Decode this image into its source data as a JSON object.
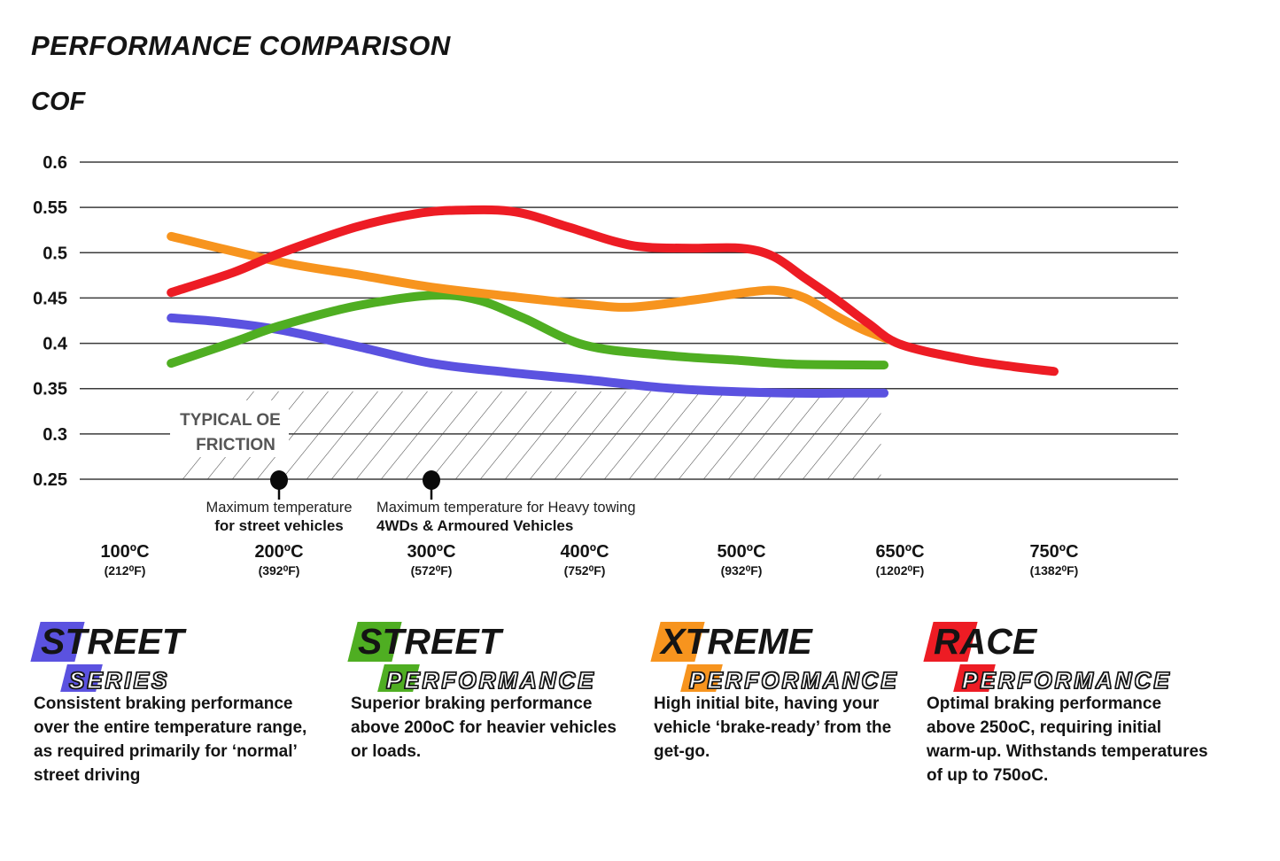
{
  "page": {
    "title": "PERFORMANCE COMPARISON",
    "y_axis_title": "COF"
  },
  "chart_data": {
    "type": "line",
    "title": "PERFORMANCE COMPARISON",
    "ylabel": "COF",
    "ylim": [
      0.25,
      0.6
    ],
    "grid": "horizontal",
    "y_ticks": [
      0.6,
      0.55,
      0.5,
      0.45,
      0.4,
      0.35,
      0.3,
      0.25
    ],
    "x_ticks": [
      {
        "c": 100,
        "label_c": "100ºC",
        "label_f": "(212⁰F)"
      },
      {
        "c": 200,
        "label_c": "200ºC",
        "label_f": "(392⁰F)"
      },
      {
        "c": 300,
        "label_c": "300ºC",
        "label_f": "(572⁰F)"
      },
      {
        "c": 400,
        "label_c": "400ºC",
        "label_f": "(752⁰F)"
      },
      {
        "c": 500,
        "label_c": "500ºC",
        "label_f": "(932⁰F)"
      },
      {
        "c": 650,
        "label_c": "650ºC",
        "label_f": "(1202⁰F)"
      },
      {
        "c": 750,
        "label_c": "750ºC",
        "label_f": "(1382⁰F)"
      }
    ],
    "series": [
      {
        "name": "Street Series",
        "color": "#5b52e0",
        "points": [
          [
            130,
            0.428
          ],
          [
            160,
            0.424
          ],
          [
            200,
            0.415
          ],
          [
            250,
            0.397
          ],
          [
            300,
            0.378
          ],
          [
            350,
            0.368
          ],
          [
            400,
            0.36
          ],
          [
            450,
            0.351
          ],
          [
            490,
            0.347
          ],
          [
            550,
            0.345
          ],
          [
            600,
            0.345
          ],
          [
            635,
            0.345
          ]
        ]
      },
      {
        "name": "Street Performance",
        "color": "#4fae22",
        "points": [
          [
            130,
            0.378
          ],
          [
            170,
            0.401
          ],
          [
            200,
            0.419
          ],
          [
            250,
            0.441
          ],
          [
            300,
            0.453
          ],
          [
            330,
            0.448
          ],
          [
            360,
            0.428
          ],
          [
            400,
            0.398
          ],
          [
            450,
            0.387
          ],
          [
            500,
            0.381
          ],
          [
            550,
            0.377
          ],
          [
            635,
            0.376
          ]
        ]
      },
      {
        "name": "Xtreme Performance",
        "color": "#f7941e",
        "points": [
          [
            130,
            0.518
          ],
          [
            200,
            0.49
          ],
          [
            250,
            0.476
          ],
          [
            300,
            0.462
          ],
          [
            350,
            0.452
          ],
          [
            400,
            0.443
          ],
          [
            430,
            0.44
          ],
          [
            470,
            0.448
          ],
          [
            510,
            0.457
          ],
          [
            535,
            0.458
          ],
          [
            560,
            0.45
          ],
          [
            590,
            0.43
          ],
          [
            615,
            0.415
          ],
          [
            640,
            0.404
          ]
        ]
      },
      {
        "name": "Race Performance",
        "color": "#ed1c24",
        "points": [
          [
            130,
            0.456
          ],
          [
            170,
            0.478
          ],
          [
            200,
            0.499
          ],
          [
            250,
            0.528
          ],
          [
            290,
            0.543
          ],
          [
            320,
            0.547
          ],
          [
            355,
            0.545
          ],
          [
            390,
            0.528
          ],
          [
            420,
            0.512
          ],
          [
            440,
            0.506
          ],
          [
            470,
            0.505
          ],
          [
            500,
            0.505
          ],
          [
            530,
            0.496
          ],
          [
            560,
            0.472
          ],
          [
            590,
            0.448
          ],
          [
            620,
            0.422
          ],
          [
            650,
            0.399
          ],
          [
            690,
            0.383
          ],
          [
            720,
            0.375
          ],
          [
            750,
            0.369
          ]
        ]
      }
    ],
    "oe_friction_zone": {
      "label_line1": "TYPICAL OE",
      "label_line2": "FRICTION",
      "cof_top": 0.347,
      "cof_bottom": 0.25,
      "temp_left_c": 128,
      "temp_right_c": 632
    },
    "annotations": [
      {
        "at_c": 200,
        "align": "middle",
        "line1": "Maximum temperature",
        "line2": "for street vehicles"
      },
      {
        "at_c": 300,
        "align": "start",
        "line1": "Maximum temperature for Heavy towing",
        "line2": "4WDs & Armoured Vehicles"
      }
    ]
  },
  "legend": {
    "items": [
      {
        "word1": "STREET",
        "word2": "SERIES",
        "color": "#5b52e0",
        "description": "Consistent braking performance over the entire temperature range, as required primarily for ‘normal’ street driving"
      },
      {
        "word1": "STREET",
        "word2": "PERFORMANCE",
        "color": "#4fae22",
        "description": "Superior braking performance above 200oC for heavier vehicles or loads."
      },
      {
        "word1": "XTREME",
        "word2": "PERFORMANCE",
        "color": "#f7941e",
        "description": "High initial bite, having your vehicle ‘brake-ready’ from the get-go."
      },
      {
        "word1": "RACE",
        "word2": "PERFORMANCE",
        "color": "#ed1c24",
        "description": "Optimal braking performance above 250oC, requiring initial warm-up. Withstands temperatures of up to 750oC."
      }
    ]
  }
}
